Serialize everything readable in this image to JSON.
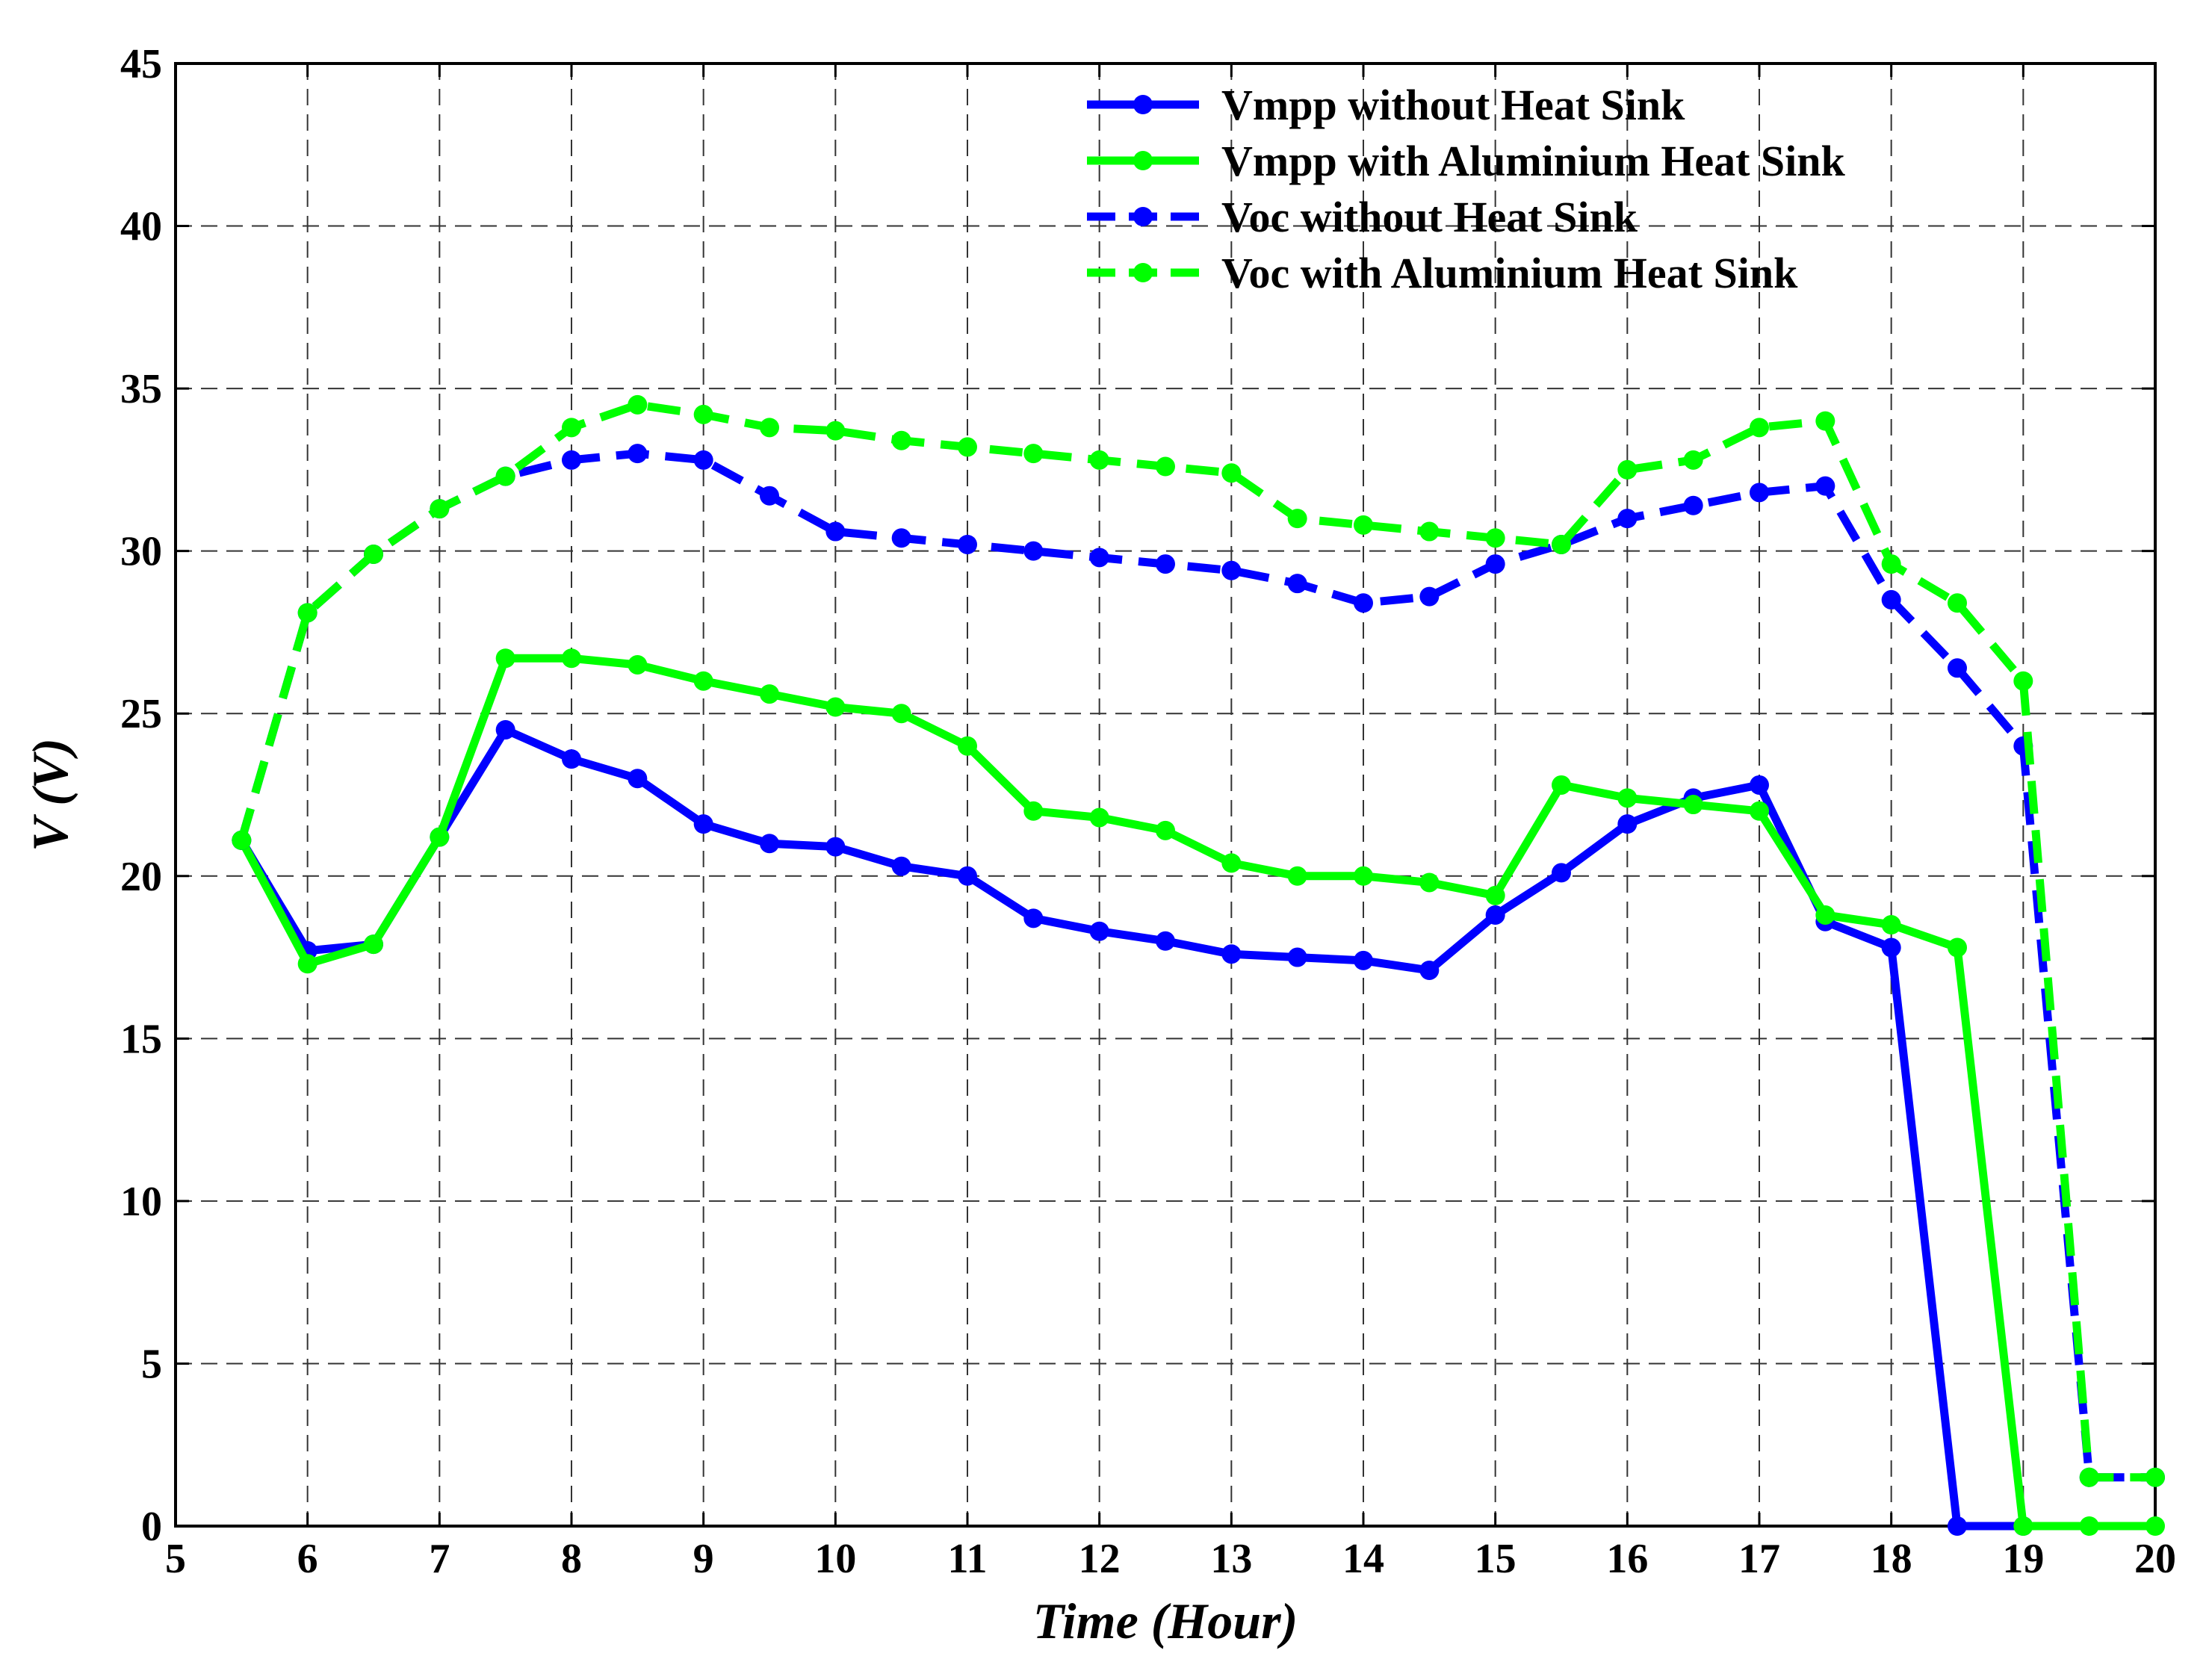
{
  "chart_data": {
    "type": "line",
    "xlabel": "Time (Hour)",
    "ylabel": "V (V)",
    "xlim": [
      5,
      20
    ],
    "ylim": [
      0,
      45
    ],
    "xticks": [
      5,
      6,
      7,
      8,
      9,
      10,
      11,
      12,
      13,
      14,
      15,
      16,
      17,
      18,
      19,
      20
    ],
    "yticks": [
      0,
      5,
      10,
      15,
      20,
      25,
      30,
      35,
      40,
      45
    ],
    "grid": true,
    "legend_position": "top-right",
    "series": [
      {
        "name": "Vmpp without Heat Sink",
        "color": "#0000ff",
        "dash": "solid",
        "x": [
          5.5,
          6,
          6.5,
          7,
          7.5,
          8,
          8.5,
          9,
          9.5,
          10,
          10.5,
          11,
          11.5,
          12,
          12.5,
          13,
          13.5,
          14,
          14.5,
          15,
          15.5,
          16,
          16.5,
          17,
          17.5,
          18,
          18.5,
          19
        ],
        "y": [
          21.1,
          17.7,
          17.9,
          21.2,
          24.5,
          23.6,
          23.0,
          21.6,
          21.0,
          20.9,
          20.3,
          20.0,
          18.7,
          18.3,
          18.0,
          17.6,
          17.5,
          17.4,
          17.1,
          18.8,
          20.1,
          21.6,
          22.4,
          22.8,
          18.6,
          17.8,
          0,
          0
        ]
      },
      {
        "name": "Vmpp with Aluminium Heat Sink",
        "color": "#00ff00",
        "dash": "solid",
        "x": [
          5.5,
          6,
          6.5,
          7,
          7.5,
          8,
          8.5,
          9,
          9.5,
          10,
          10.5,
          11,
          11.5,
          12,
          12.5,
          13,
          13.5,
          14,
          14.5,
          15,
          15.5,
          16,
          16.5,
          17,
          17.5,
          18,
          18.5,
          19,
          19.5,
          20
        ],
        "y": [
          21.1,
          17.3,
          17.9,
          21.2,
          26.7,
          26.7,
          26.5,
          26.0,
          25.6,
          25.2,
          25.0,
          24.0,
          22.0,
          21.8,
          21.4,
          20.4,
          20.0,
          20.0,
          19.8,
          19.4,
          22.8,
          22.4,
          22.2,
          22.0,
          18.8,
          18.5,
          17.8,
          0,
          0,
          0
        ]
      },
      {
        "name": "Voc without Heat Sink",
        "color": "#0000ff",
        "dash": "dashed",
        "x": [
          5.5,
          6,
          6.5,
          7,
          7.5,
          8,
          8.5,
          9,
          9.5,
          10,
          10.5,
          11,
          11.5,
          12,
          12.5,
          13,
          13.5,
          14,
          14.5,
          15,
          15.5,
          16,
          16.5,
          17,
          17.5,
          18,
          18.5,
          19,
          19.5,
          20
        ],
        "y": [
          21.1,
          28.1,
          29.9,
          31.3,
          32.3,
          32.8,
          33.0,
          32.8,
          31.7,
          30.6,
          30.4,
          30.2,
          30.0,
          29.8,
          29.6,
          29.4,
          29.0,
          28.4,
          28.6,
          29.6,
          30.2,
          31.0,
          31.4,
          31.8,
          32.0,
          28.5,
          26.4,
          24.0,
          1.5,
          1.5
        ]
      },
      {
        "name": "Voc with Aluminium Heat Sink",
        "color": "#00ff00",
        "dash": "dashed",
        "x": [
          5.5,
          6,
          6.5,
          7,
          7.5,
          8,
          8.5,
          9,
          9.5,
          10,
          10.5,
          11,
          11.5,
          12,
          12.5,
          13,
          13.5,
          14,
          14.5,
          15,
          15.5,
          16,
          16.5,
          17,
          17.5,
          18,
          18.5,
          19,
          19.5,
          20
        ],
        "y": [
          21.1,
          28.1,
          29.9,
          31.3,
          32.3,
          33.8,
          34.5,
          34.2,
          33.8,
          33.7,
          33.4,
          33.2,
          33.0,
          32.8,
          32.6,
          32.4,
          31.0,
          30.8,
          30.6,
          30.4,
          30.2,
          32.5,
          32.8,
          33.8,
          34.0,
          29.6,
          28.4,
          26.0,
          1.5,
          1.5
        ]
      }
    ]
  }
}
